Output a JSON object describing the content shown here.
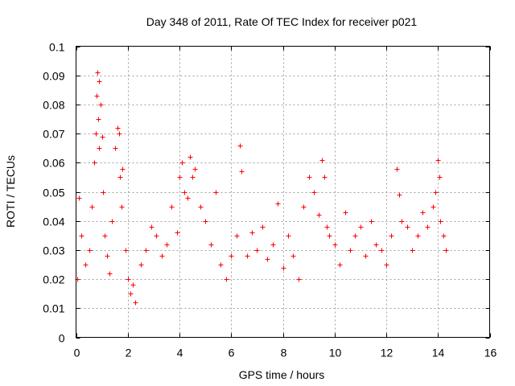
{
  "chart_data": {
    "type": "scatter",
    "title": "Day 348 of 2011, Rate Of TEC Index for receiver p021",
    "xlabel": "GPS time / hours",
    "ylabel": "ROTI / TECUs",
    "xlim": [
      0,
      16
    ],
    "ylim": [
      0,
      0.1
    ],
    "x_ticks": [
      0,
      2,
      4,
      6,
      8,
      10,
      12,
      14,
      16
    ],
    "y_ticks": [
      0,
      0.01,
      0.02,
      0.03,
      0.04,
      0.05,
      0.06,
      0.07,
      0.08,
      0.09,
      0.1
    ],
    "x_tick_labels": [
      "0",
      "2",
      "4",
      "6",
      "8",
      "10",
      "12",
      "14",
      "16"
    ],
    "y_tick_labels": [
      "0",
      "0.01",
      "0.02",
      "0.03",
      "0.04",
      "0.05",
      "0.06",
      "0.07",
      "0.08",
      "0.09",
      "0.1"
    ],
    "grid": true,
    "marker": "+",
    "series": [
      {
        "name": "ROTI",
        "color": "#ff0000",
        "x": [
          0.05,
          0.1,
          0.2,
          0.35,
          0.5,
          0.6,
          0.7,
          0.75,
          0.8,
          0.82,
          0.85,
          0.88,
          0.9,
          0.95,
          1.0,
          1.05,
          1.1,
          1.2,
          1.3,
          1.4,
          1.5,
          1.6,
          1.65,
          1.7,
          1.75,
          1.8,
          1.9,
          2.0,
          2.1,
          2.2,
          2.3,
          2.5,
          2.7,
          2.9,
          3.1,
          3.3,
          3.5,
          3.7,
          3.9,
          4.0,
          4.1,
          4.2,
          4.3,
          4.4,
          4.5,
          4.6,
          4.8,
          5.0,
          5.2,
          5.4,
          5.6,
          5.8,
          6.0,
          6.2,
          6.35,
          6.4,
          6.6,
          6.8,
          7.0,
          7.2,
          7.4,
          7.6,
          7.8,
          8.0,
          8.2,
          8.4,
          8.6,
          8.8,
          9.0,
          9.2,
          9.4,
          9.5,
          9.6,
          9.7,
          9.8,
          10.0,
          10.2,
          10.4,
          10.6,
          10.8,
          11.0,
          11.2,
          11.4,
          11.6,
          11.8,
          12.0,
          12.2,
          12.4,
          12.5,
          12.6,
          12.8,
          13.0,
          13.2,
          13.4,
          13.6,
          13.8,
          13.9,
          14.0,
          14.05,
          14.1,
          14.2,
          14.3
        ],
        "y": [
          0.02,
          0.048,
          0.035,
          0.025,
          0.03,
          0.045,
          0.06,
          0.07,
          0.083,
          0.091,
          0.075,
          0.088,
          0.065,
          0.08,
          0.069,
          0.05,
          0.035,
          0.028,
          0.022,
          0.04,
          0.065,
          0.072,
          0.07,
          0.055,
          0.045,
          0.058,
          0.03,
          0.02,
          0.015,
          0.018,
          0.012,
          0.025,
          0.03,
          0.038,
          0.035,
          0.028,
          0.032,
          0.045,
          0.036,
          0.055,
          0.06,
          0.05,
          0.048,
          0.062,
          0.055,
          0.058,
          0.045,
          0.04,
          0.032,
          0.05,
          0.025,
          0.02,
          0.028,
          0.035,
          0.066,
          0.057,
          0.028,
          0.036,
          0.03,
          0.038,
          0.027,
          0.032,
          0.046,
          0.024,
          0.035,
          0.028,
          0.02,
          0.045,
          0.055,
          0.05,
          0.042,
          0.061,
          0.055,
          0.038,
          0.035,
          0.032,
          0.025,
          0.043,
          0.03,
          0.035,
          0.038,
          0.028,
          0.04,
          0.032,
          0.03,
          0.025,
          0.035,
          0.058,
          0.049,
          0.04,
          0.038,
          0.03,
          0.035,
          0.043,
          0.038,
          0.045,
          0.05,
          0.061,
          0.055,
          0.04,
          0.035,
          0.03
        ]
      }
    ]
  }
}
